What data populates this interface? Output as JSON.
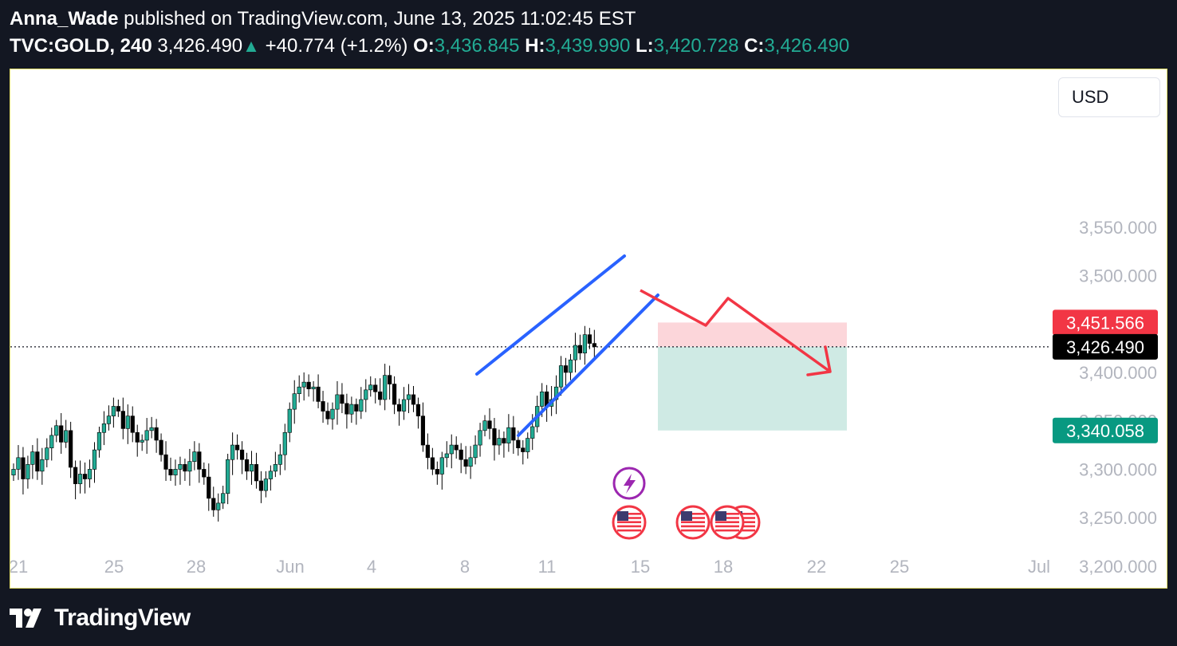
{
  "header": {
    "author": "Anna_Wade",
    "published_text": "published on TradingView.com, June 13, 2025 11:02:45 EST",
    "symbol": "TVC:GOLD, 240",
    "last": "3,426.490",
    "change": "+40.774 (+1.2%)",
    "o_label": "O:",
    "o_value": "3,436.845",
    "h_label": "H:",
    "h_value": "3,439.990",
    "l_label": "L:",
    "l_value": "3,420.728",
    "c_label": "C:",
    "c_value": "3,426.490"
  },
  "currency_button": "USD",
  "price_labels": {
    "stop": "3,451.566",
    "current": "3,426.490",
    "target": "3,340.058"
  },
  "footer": {
    "brand": "TradingView"
  },
  "colors": {
    "background": "#131722",
    "up": "#22ab94",
    "down": "#000000",
    "channel": "#2962ff",
    "arrow": "#f23645",
    "stop_zone": "#fcd6da",
    "target_zone": "#cfeae4",
    "stop_label": "#f23645",
    "target_label": "#089981"
  },
  "icons": [
    "lightning-event-icon",
    "us-flag-icon",
    "tradingview-logo-icon"
  ],
  "chart_data": {
    "type": "candlestick",
    "title": "",
    "xlabel": "",
    "ylabel": "",
    "ylim": [
      3150,
      3600
    ],
    "x_ticks": [
      "21",
      "25",
      "28",
      "Jun",
      "4",
      "8",
      "11",
      "15",
      "18",
      "22",
      "25",
      "Jul"
    ],
    "y_ticks": [
      "3,200.000",
      "3,250.000",
      "3,300.000",
      "3,350.000",
      "3,400.000",
      "3,450.000",
      "3,500.000",
      "3,550.000"
    ],
    "current_price": 3426.49,
    "stop_price": 3451.566,
    "target_price": 3340.058,
    "closes": [
      3300,
      3312,
      3290,
      3305,
      3318,
      3298,
      3310,
      3322,
      3335,
      3345,
      3328,
      3340,
      3302,
      3285,
      3295,
      3290,
      3300,
      3320,
      3338,
      3347,
      3355,
      3365,
      3360,
      3342,
      3355,
      3338,
      3328,
      3330,
      3340,
      3343,
      3330,
      3315,
      3300,
      3294,
      3300,
      3305,
      3298,
      3308,
      3318,
      3300,
      3292,
      3270,
      3258,
      3265,
      3275,
      3310,
      3325,
      3320,
      3310,
      3298,
      3305,
      3288,
      3278,
      3290,
      3298,
      3305,
      3315,
      3338,
      3362,
      3378,
      3385,
      3390,
      3383,
      3385,
      3370,
      3360,
      3352,
      3362,
      3377,
      3368,
      3357,
      3367,
      3360,
      3372,
      3382,
      3387,
      3380,
      3372,
      3397,
      3388,
      3367,
      3360,
      3372,
      3377,
      3367,
      3355,
      3325,
      3312,
      3300,
      3295,
      3312,
      3316,
      3325,
      3320,
      3310,
      3303,
      3312,
      3325,
      3340,
      3350,
      3342,
      3325,
      3332,
      3327,
      3343,
      3330,
      3322,
      3318,
      3332,
      3344,
      3365,
      3380,
      3365,
      3372,
      3385,
      3407,
      3400,
      3413,
      3428,
      3420,
      3439,
      3430,
      3426.49
    ],
    "events": [
      "lightning",
      "us-flag",
      "us-flag",
      "us-flag",
      "us-flag"
    ]
  }
}
